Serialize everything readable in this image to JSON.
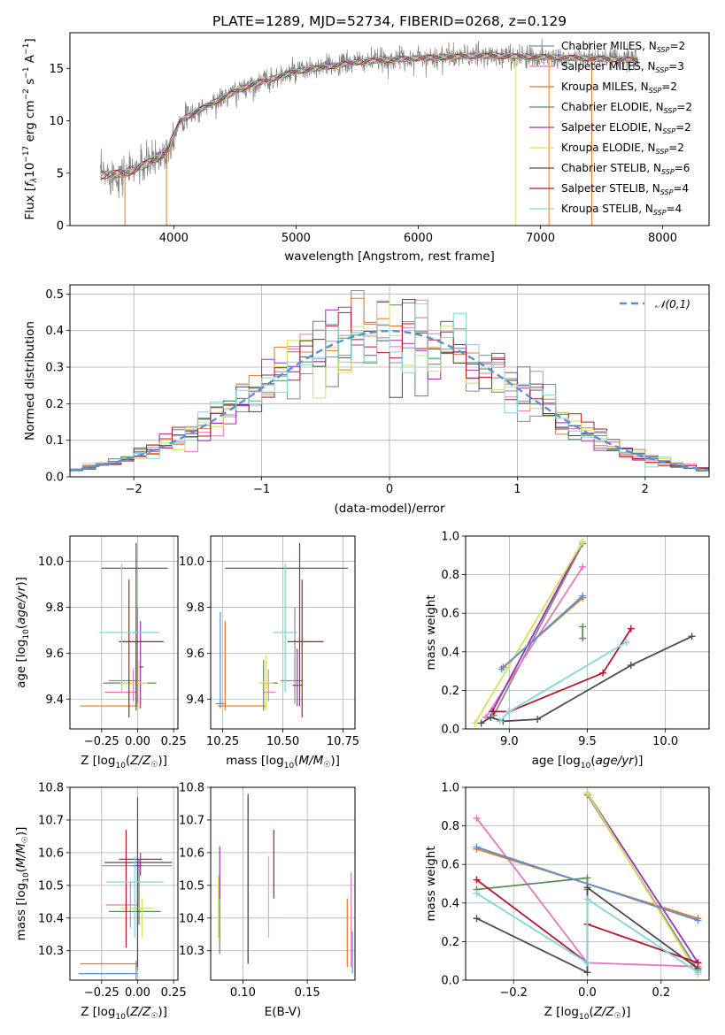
{
  "title": "PLATE=1289, MJD=52734, FIBERID=0268, z=0.129",
  "colors": {
    "chabrier_miles": "#8c8c8c",
    "salpeter_miles": "#e377c2",
    "kroupa_miles": "#e07b24",
    "chabrier_elodie": "#5b8a5b",
    "salpeter_elodie": "#9b30b0",
    "kroupa_elodie": "#d6e05a",
    "chabrier_stelib": "#4d4d4d",
    "salpeter_stelib": "#b2182b",
    "kroupa_stelib": "#7fd6dc",
    "normal": "#5b8fd9",
    "data": "#808080"
  },
  "chart_data": [
    {
      "id": "spectrum",
      "type": "line",
      "xlabel": "wavelength [Angstrom, rest frame]",
      "ylabel": "Flux [f_λ 10^-17 erg cm^-2 s^-1 A^-1]",
      "xlim": [
        3150,
        8380
      ],
      "ylim": [
        0,
        18.4
      ],
      "xticks": [
        4000,
        5000,
        6000,
        7000,
        8000
      ],
      "yticks": [
        0,
        5,
        10,
        15
      ],
      "continuum": {
        "x": [
          3400,
          3600,
          3800,
          3950,
          4050,
          4300,
          4600,
          5000,
          5500,
          6000,
          6500,
          7000,
          7500,
          7800
        ],
        "y": [
          4.8,
          5.0,
          6.0,
          7.2,
          10.0,
          11.6,
          13.3,
          14.7,
          15.6,
          16.0,
          16.2,
          16.1,
          15.9,
          15.8
        ]
      },
      "legend": [
        {
          "name": "Chabrier MILES, N_SSP=2",
          "label": "Chabrier MILES, N",
          "sub": "SSP",
          "suffix": "=2",
          "color": "#8c8c8c"
        },
        {
          "name": "Salpeter MILES, N_SSP=3",
          "label": "Salpeter MILES, N",
          "sub": "SSP",
          "suffix": "=3",
          "color": "#e377c2"
        },
        {
          "name": "Kroupa MILES, N_SSP=2",
          "label": "Kroupa MILES, N",
          "sub": "SSP",
          "suffix": "=2",
          "color": "#e07b24"
        },
        {
          "name": "Chabrier ELODIE, N_SSP=2",
          "label": "Chabrier ELODIE, N",
          "sub": "SSP",
          "suffix": "=2",
          "color": "#5b8a5b"
        },
        {
          "name": "Salpeter ELODIE, N_SSP=2",
          "label": "Salpeter ELODIE, N",
          "sub": "SSP",
          "suffix": "=2",
          "color": "#9b30b0"
        },
        {
          "name": "Kroupa ELODIE, N_SSP=2",
          "label": "Kroupa ELODIE, N",
          "sub": "SSP",
          "suffix": "=2",
          "color": "#d6e05a"
        },
        {
          "name": "Chabrier STELIB, N_SSP=6",
          "label": "Chabrier STELIB, N",
          "sub": "SSP",
          "suffix": "=6",
          "color": "#4d4d4d"
        },
        {
          "name": "Salpeter STELIB, N_SSP=4",
          "label": "Salpeter STELIB, N",
          "sub": "SSP",
          "suffix": "=4",
          "color": "#b2182b"
        },
        {
          "name": "Kroupa STELIB, N_SSP=4",
          "label": "Kroupa STELIB, N",
          "sub": "SSP",
          "suffix": "=4",
          "color": "#7fd6dc"
        }
      ]
    },
    {
      "id": "residuals",
      "type": "line",
      "xlabel": "(data-model)/error",
      "ylabel": "Normed distribution",
      "xlim": [
        -2.5,
        2.5
      ],
      "ylim": [
        0,
        0.525
      ],
      "xticks": [
        -2,
        -1,
        0,
        1,
        2
      ],
      "yticks": [
        0.0,
        0.1,
        0.2,
        0.3,
        0.4,
        0.5
      ],
      "normal_label": "𝒩(0,1)",
      "bin_width": 0.1
    },
    {
      "id": "age_vs_Z",
      "type": "scatter",
      "xlabel": "Z [log10(Z/Z☉)]",
      "ylabel": "age [log10(age/yr)]",
      "xlim": [
        -0.47,
        0.28
      ],
      "ylim": [
        9.27,
        10.11
      ],
      "xticks": [
        -0.25,
        0.0,
        0.25
      ],
      "yticks": [
        9.4,
        9.6,
        9.8,
        10.0
      ],
      "points": [
        {
          "color": "#8c8c8c",
          "x": 0.0,
          "y": 9.48,
          "xerr": [
            0.2,
            0.02
          ],
          "yerr": [
            0.1,
            0.32
          ]
        },
        {
          "color": "#e377c2",
          "x": -0.03,
          "y": 9.43,
          "xerr": [
            0.2,
            0.03
          ],
          "yerr": [
            0.04,
            0.1
          ]
        },
        {
          "color": "#e07b24",
          "x": -0.01,
          "y": 9.37,
          "xerr": [
            0.39,
            0.01
          ],
          "yerr": [
            0.02,
            0.28
          ]
        },
        {
          "color": "#5b8a5b",
          "x": -0.01,
          "y": 9.47,
          "xerr": [
            0.23,
            0.14
          ],
          "yerr": [
            0.12,
            0.1
          ]
        },
        {
          "color": "#9b30b0",
          "x": 0.02,
          "y": 9.54,
          "xerr": [
            0.01,
            0.02
          ],
          "yerr": [
            0.18,
            0.2
          ]
        },
        {
          "color": "#d6e05a",
          "x": 0.01,
          "y": 9.47,
          "xerr": [
            0.13,
            0.06
          ],
          "yerr": [
            0.11,
            0.1
          ]
        },
        {
          "color": "#4d4d4d",
          "x": -0.01,
          "y": 9.97,
          "xerr": [
            0.24,
            0.22
          ],
          "yerr": [
            0.6,
            0.11
          ]
        },
        {
          "color": "#b2182b",
          "x": -0.06,
          "y": 9.65,
          "xerr": [
            0.07,
            0.24
          ],
          "yerr": [
            0.33,
            0.27
          ]
        },
        {
          "color": "#7fd6dc",
          "x": -0.11,
          "y": 9.69,
          "xerr": [
            0.16,
            0.26
          ],
          "yerr": [
            0.26,
            0.3
          ]
        }
      ]
    },
    {
      "id": "age_vs_mass",
      "type": "scatter",
      "xlabel": "mass [log10(M/M☉)]",
      "ylabel": "",
      "xlim": [
        10.2,
        10.8
      ],
      "ylim": [
        9.27,
        10.11
      ],
      "xticks": [
        10.25,
        10.5,
        10.75
      ],
      "yticks": [
        9.4,
        9.6,
        9.8,
        10.0
      ],
      "points": [
        {
          "color": "#8c8c8c",
          "x": 10.55,
          "y": 9.48,
          "xerr": [
            0.06,
            0.03
          ],
          "yerr": [
            0.1,
            0.32
          ]
        },
        {
          "color": "#e377c2",
          "x": 10.44,
          "y": 9.43,
          "xerr": [
            0.02,
            0.03
          ],
          "yerr": [
            0.04,
            0.1
          ]
        },
        {
          "color": "#e07b24",
          "x": 10.26,
          "y": 9.37,
          "xerr": [
            0.03,
            0.17
          ],
          "yerr": [
            0.02,
            0.37
          ]
        },
        {
          "color": "#5b8a5b",
          "x": 10.42,
          "y": 9.47,
          "xerr": [
            0.01,
            0.06
          ],
          "yerr": [
            0.12,
            0.1
          ]
        },
        {
          "color": "#9b30b0",
          "x": 10.56,
          "y": 9.46,
          "xerr": [
            0.02,
            0.02
          ],
          "yerr": [
            0.09,
            0.16
          ]
        },
        {
          "color": "#d6e05a",
          "x": 10.43,
          "y": 9.47,
          "xerr": [
            0.03,
            0.03
          ],
          "yerr": [
            0.12,
            0.12
          ]
        },
        {
          "color": "#4d4d4d",
          "x": 10.57,
          "y": 9.97,
          "xerr": [
            0.31,
            0.2
          ],
          "yerr": [
            0.6,
            0.11
          ]
        },
        {
          "color": "#b2182b",
          "x": 10.58,
          "y": 9.65,
          "xerr": [
            0.06,
            0.09
          ],
          "yerr": [
            0.33,
            0.27
          ]
        },
        {
          "color": "#7fd6dc",
          "x": 10.51,
          "y": 9.69,
          "xerr": [
            0.05,
            0.05
          ],
          "yerr": [
            0.26,
            0.3
          ]
        },
        {
          "color": "#5b8fd9",
          "x": 10.24,
          "y": 9.38,
          "xerr": [
            0.02,
            0.02
          ],
          "yerr": [
            0.02,
            0.4
          ]
        }
      ]
    },
    {
      "id": "weight_vs_age",
      "type": "line",
      "xlabel": "age [log10(age/yr)]",
      "ylabel": "mass weight",
      "xlim": [
        8.72,
        10.28
      ],
      "ylim": [
        0,
        1.0
      ],
      "xticks": [
        9.0,
        9.5,
        10.0
      ],
      "yticks": [
        0.0,
        0.2,
        0.4,
        0.6,
        0.8,
        1.0
      ],
      "series": [
        {
          "color": "#8c8c8c",
          "x": [
            8.9,
            9.47
          ],
          "y": [
            0.07,
            0.96
          ]
        },
        {
          "color": "#e377c2",
          "x": [
            8.85,
            9.47
          ],
          "y": [
            0.06,
            0.84
          ]
        },
        {
          "color": "#e07b24",
          "x": [
            8.96,
            9.47
          ],
          "y": [
            0.32,
            0.68
          ]
        },
        {
          "color": "#5b8a5b",
          "x": [
            9.47,
            9.47
          ],
          "y": [
            0.47,
            0.53
          ]
        },
        {
          "color": "#9b30b0",
          "x": [
            8.89,
            9.47
          ],
          "y": [
            0.09,
            0.97
          ]
        },
        {
          "color": "#d6e05a",
          "x": [
            8.78,
            9.47
          ],
          "y": [
            0.03,
            0.97
          ]
        },
        {
          "color": "#4d4d4d",
          "x": [
            8.82,
            8.88,
            8.96,
            9.18,
            9.78,
            10.17
          ],
          "y": [
            0.03,
            0.06,
            0.04,
            0.05,
            0.33,
            0.48
          ]
        },
        {
          "color": "#b2182b",
          "x": [
            8.9,
            9.0,
            9.6,
            9.78
          ],
          "y": [
            0.09,
            0.09,
            0.29,
            0.52
          ]
        },
        {
          "color": "#7fd6dc",
          "x": [
            8.94,
            9.0,
            9.75
          ],
          "y": [
            0.04,
            0.09,
            0.45
          ]
        },
        {
          "color": "#5b8fd9",
          "x": [
            8.95,
            9.47
          ],
          "y": [
            0.31,
            0.69
          ]
        }
      ]
    },
    {
      "id": "mass_vs_Z",
      "type": "scatter",
      "xlabel": "Z [log10(Z/Z☉)]",
      "ylabel": "mass [log10(M/M☉)]",
      "xlim": [
        -0.47,
        0.28
      ],
      "ylim": [
        10.21,
        10.8
      ],
      "xticks": [
        -0.25,
        0.0,
        0.25
      ],
      "yticks": [
        10.3,
        10.4,
        10.5,
        10.6,
        10.7,
        10.8
      ],
      "points": [
        {
          "color": "#8c8c8c",
          "x": 0.0,
          "y": 10.56,
          "xerr": [
            0.25,
            0.24
          ],
          "yerr": [
            0.12,
            0.13
          ]
        },
        {
          "color": "#e377c2",
          "x": -0.05,
          "y": 10.44,
          "xerr": [
            0.17,
            0.05
          ],
          "yerr": [
            0.07,
            0.07
          ]
        },
        {
          "color": "#e07b24",
          "x": 0.0,
          "y": 10.26,
          "xerr": [
            0.4,
            0.0
          ],
          "yerr": [
            0.02,
            0.19
          ]
        },
        {
          "color": "#5b8a5b",
          "x": 0.01,
          "y": 10.42,
          "xerr": [
            0.21,
            0.15
          ],
          "yerr": [
            0.04,
            0.16
          ]
        },
        {
          "color": "#9b30b0",
          "x": 0.02,
          "y": 10.56,
          "xerr": [
            0.05,
            0.01
          ],
          "yerr": [
            0.03,
            0.04
          ]
        },
        {
          "color": "#d6e05a",
          "x": 0.03,
          "y": 10.43,
          "xerr": [
            0.15,
            0.08
          ],
          "yerr": [
            0.09,
            0.03
          ]
        },
        {
          "color": "#4d4d4d",
          "x": 0.0,
          "y": 10.57,
          "xerr": [
            0.23,
            0.24
          ],
          "yerr": [
            0.32,
            0.2
          ]
        },
        {
          "color": "#b2182b",
          "x": -0.08,
          "y": 10.58,
          "xerr": [
            0.05,
            0.25
          ],
          "yerr": [
            0.27,
            0.09
          ]
        },
        {
          "color": "#7fd6dc",
          "x": -0.02,
          "y": 10.51,
          "xerr": [
            0.2,
            0.2
          ],
          "yerr": [
            0.17,
            0.08
          ]
        },
        {
          "color": "#5b8fd9",
          "x": -0.01,
          "y": 10.23,
          "xerr": [
            0.4,
            0.01
          ],
          "yerr": [
            0.02,
            0.04
          ]
        }
      ]
    },
    {
      "id": "mass_vs_ebv",
      "type": "scatter",
      "xlabel": "E(B-V)",
      "ylabel": "",
      "xlim": [
        0.075,
        0.187
      ],
      "ylim": [
        10.21,
        10.8
      ],
      "xticks": [
        0.1,
        0.15
      ],
      "yticks": [
        10.3,
        10.4,
        10.5,
        10.6,
        10.7,
        10.8
      ],
      "points": [
        {
          "color": "#8c8c8c",
          "x": 0.104,
          "y": 10.56,
          "xerr": [
            0,
            0
          ],
          "yerr": [
            0.3,
            0.21
          ]
        },
        {
          "color": "#e377c2",
          "x": 0.184,
          "y": 10.44,
          "xerr": [
            0,
            0
          ],
          "yerr": [
            0.19,
            0.1
          ]
        },
        {
          "color": "#e07b24",
          "x": 0.181,
          "y": 10.26,
          "xerr": [
            0,
            0
          ],
          "yerr": [
            0.01,
            0.2
          ]
        },
        {
          "color": "#5b8a5b",
          "x": 0.082,
          "y": 10.42,
          "xerr": [
            0,
            0
          ],
          "yerr": [
            0.13,
            0.11
          ]
        },
        {
          "color": "#9b30b0",
          "x": 0.082,
          "y": 10.56,
          "xerr": [
            0,
            0
          ],
          "yerr": [
            0.1,
            0.06
          ]
        },
        {
          "color": "#d6e05a",
          "x": 0.081,
          "y": 10.43,
          "xerr": [
            0,
            0
          ],
          "yerr": [
            0.09,
            0.1
          ]
        },
        {
          "color": "#4d4d4d",
          "x": 0.104,
          "y": 10.57,
          "xerr": [
            0,
            0
          ],
          "yerr": [
            0.31,
            0.21
          ]
        },
        {
          "color": "#b2182b",
          "x": 0.124,
          "y": 10.58,
          "xerr": [
            0,
            0
          ],
          "yerr": [
            0.12,
            0.09
          ]
        },
        {
          "color": "#7fd6dc",
          "x": 0.12,
          "y": 10.51,
          "xerr": [
            0,
            0
          ],
          "yerr": [
            0.17,
            0.08
          ]
        },
        {
          "color": "#5b8fd9",
          "x": 0.185,
          "y": 10.3,
          "xerr": [
            0,
            0
          ],
          "yerr": [
            0.07,
            0.06
          ]
        }
      ]
    },
    {
      "id": "weight_vs_Z",
      "type": "line",
      "xlabel": "Z [log10(Z/Z☉)]",
      "ylabel": "mass weight",
      "xlim": [
        -0.33,
        0.33
      ],
      "ylim": [
        0,
        1.0
      ],
      "xticks": [
        -0.2,
        0.0,
        0.2
      ],
      "yticks": [
        0.0,
        0.2,
        0.4,
        0.6,
        0.8,
        1.0
      ],
      "series": [
        {
          "color": "#8c8c8c",
          "x": [
            0.0,
            0.3
          ],
          "y": [
            0.96,
            0.05
          ]
        },
        {
          "color": "#e377c2",
          "x": [
            -0.3,
            0.0,
            0.3
          ],
          "y": [
            0.84,
            0.09,
            0.07
          ]
        },
        {
          "color": "#e07b24",
          "x": [
            -0.3,
            0.3
          ],
          "y": [
            0.68,
            0.32
          ]
        },
        {
          "color": "#5b8a5b",
          "x": [
            -0.3,
            0.0,
            0.0
          ],
          "y": [
            0.47,
            0.53,
            0.47
          ]
        },
        {
          "color": "#9b30b0",
          "x": [
            0.0,
            0.3
          ],
          "y": [
            0.97,
            0.09
          ]
        },
        {
          "color": "#d6e05a",
          "x": [
            0.0,
            0.3
          ],
          "y": [
            0.97,
            0.03
          ]
        },
        {
          "color": "#4d4d4d",
          "x": [
            -0.3,
            0.0,
            0.0,
            0.3
          ],
          "y": [
            0.32,
            0.04,
            0.48,
            0.06
          ]
        },
        {
          "color": "#b2182b",
          "x": [
            -0.3,
            0.0,
            0.0,
            0.3
          ],
          "y": [
            0.52,
            0.09,
            0.29,
            0.09
          ]
        },
        {
          "color": "#7fd6dc",
          "x": [
            -0.3,
            0.0,
            0.0,
            0.3
          ],
          "y": [
            0.45,
            0.09,
            0.42,
            0.04
          ]
        },
        {
          "color": "#5b8fd9",
          "x": [
            -0.3,
            0.3
          ],
          "y": [
            0.69,
            0.31
          ]
        }
      ]
    }
  ]
}
